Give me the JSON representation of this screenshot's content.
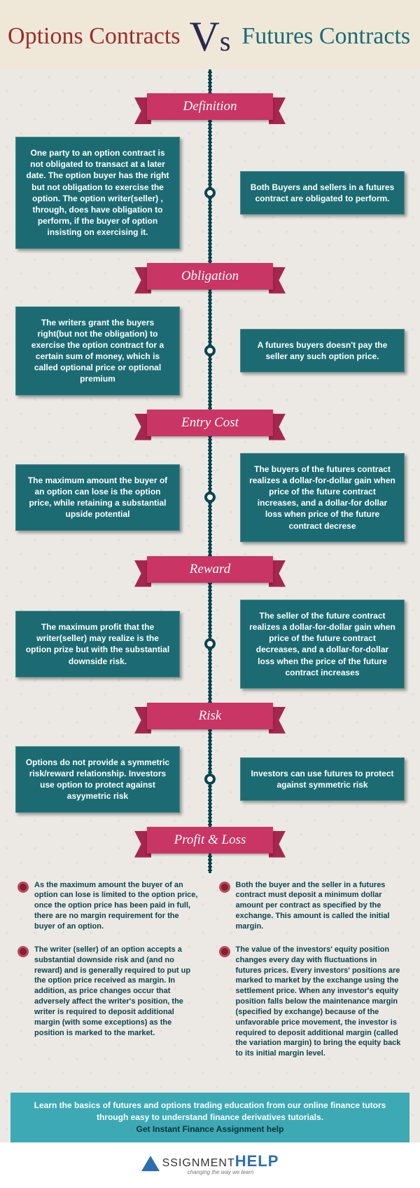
{
  "header": {
    "left_title": "Options Contracts",
    "vs": "Vs",
    "right_title": "Futures Contracts",
    "left_color": "#9b2c2c",
    "right_color": "#1c6b73",
    "vs_color": "#2a2a50",
    "bg_color": "#efe8d8"
  },
  "timeline": {
    "line_color": "#0a4550",
    "card_bg": "#1c6b73",
    "card_text_color": "#ffffff",
    "ribbon_bg": "#c93565",
    "ribbon_shadow": "#a5274f",
    "sections": [
      {
        "label": "Definition",
        "left": "One party to an option contract is not obligated to transact at a later date. The option buyer has the right but not obligation to exercise the option. The option writer(seller) , through, does have obligation to perform, if the buyer of option insisting on exercising it.",
        "right": "Both Buyers and sellers in a futures contract are obligated to perform."
      },
      {
        "label": "Obligation",
        "left": "The writers grant the buyers right(but not the obligation) to exercise the option contract for a certain sum of money, which is called optional price or optional premium",
        "right": "A futures buyers doesn't pay the seller any such option price."
      },
      {
        "label": "Entry Cost",
        "left": "The maximum amount the buyer of an option can lose is the option price, while retaining a substantial upside potential",
        "right": "The buyers of the futures contract realizes a dollar-for-dollar gain when price of the future contract increases, and a dollar-for dollar loss when price of the future contract decrese"
      },
      {
        "label": "Reward",
        "left": "The maximum profit that the writer(seller) may realize is the option prize but with the substantial downside risk.",
        "right": "The seller of the future contract realizes a dollar-for-dollar gain when price of the future contract decreases, and a dollar-for-dollar loss when the price of the future contract increases"
      },
      {
        "label": "Risk",
        "left": "Options do not provide a symmetric risk/reward relationship. Investors use option to protect against asyymetric risk",
        "right": "Investors can use futures to protect against symmetric risk"
      }
    ],
    "profit_loss_label": "Profit & Loss"
  },
  "profit_loss": {
    "bullet_color": "#8b1e2e",
    "text_color": "#0a4550",
    "left": [
      "As the maximum amount the buyer of an option can lose is limited to the option price, once the option price has been paid in full, there are no margin requirement for the buyer of an option.",
      "The writer (seller) of an option accepts a substantial downside risk and (and no reward) and is generally required to put up the option price received as margin. In addition, as price changes occur that adversely affect the writer's position, the writer is required to deposit additional margin (with some exceptions) as the position is marked to the market."
    ],
    "right": [
      "Both the buyer and the seller in a futures contract must deposit a minimum dollar amount per contract as specified by the exchange. This amount is called the initial margin.",
      "The value of the investors' equity position changes every day with fluctuations in futures prices. Every investors' positions are marked to market by the exchange using the settlement price.\nWhen any investor's equity position falls below the maintenance margin (specified by exchange) because of the unfavorable price movement, the investor is required to deposit additional margin (called the variation margin) to bring the equity back to its initial margin level."
    ]
  },
  "footer": {
    "bg_color": "#3da9b5",
    "text": "Learn the basics of futures and options trading education from our online finance tutors through easy to understand finance derivatives tutorials.",
    "link_text": "Get Instant Finance Assignment help",
    "link_color": "#06303a"
  },
  "logo": {
    "brand": "SSIGNMENT",
    "brand_suffix": "Help",
    "tagline": "changing the way we learn",
    "accent_color": "#2b6fb0"
  }
}
